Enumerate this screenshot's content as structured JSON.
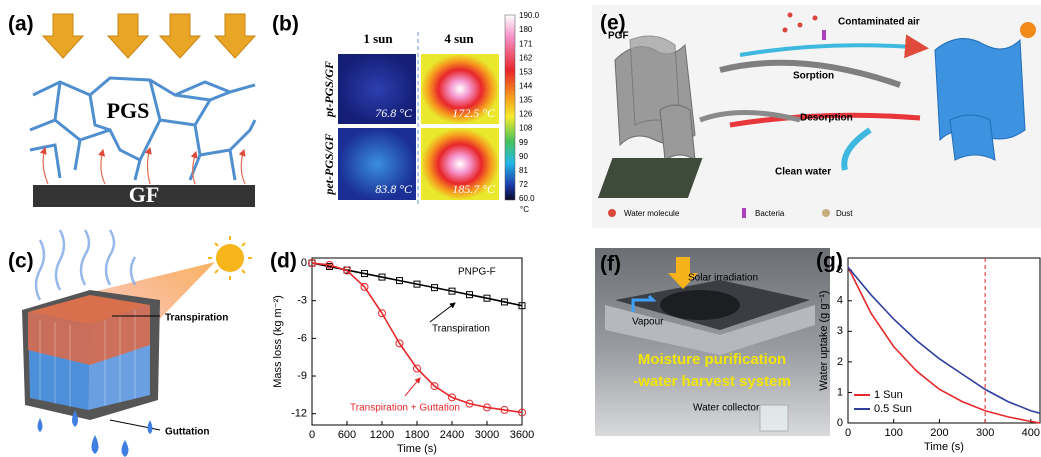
{
  "panel_labels": [
    "(a)",
    "(b)",
    "(c)",
    "(d)",
    "(e)",
    "(f)",
    "(g)"
  ],
  "panel_a": {
    "layer_top": "PGS",
    "layer_bottom": "GF"
  },
  "panel_b": {
    "columns": [
      "1 sun",
      "4 sun"
    ],
    "rows": [
      "pt-PGS/GF",
      "pet-PGS/GF"
    ],
    "temperatures": [
      [
        "76.8 °C",
        "172.5 °C"
      ],
      [
        "83.8 °C",
        "185.7 °C"
      ]
    ],
    "colorbar_ticks": [
      "190.0",
      "180",
      "171",
      "162",
      "153",
      "144",
      "135",
      "126",
      "108",
      "99",
      "90",
      "81",
      "72",
      "60.0"
    ],
    "colorbar_unit": "°C"
  },
  "panel_c": {
    "top_label": "Transpiration",
    "bottom_label": "Guttation"
  },
  "panel_e": {
    "material": "PGF",
    "inflow": "Contaminated air",
    "sorption": "Sorption",
    "desorption": "Desorption",
    "outflow": "Clean water",
    "legend": [
      "Water molecule",
      "Bacteria",
      "Dust"
    ]
  },
  "panel_f": {
    "light": "Solar irradiation",
    "vapour": "Vapour",
    "title_lines": [
      "Moisture purification",
      "-water harvest system"
    ],
    "collector": "Water collector"
  },
  "chart_data": [
    {
      "type": "line",
      "x_label": "Time (s)",
      "y_label": "Mass loss (kg m⁻²)",
      "annotation": "PNPG-F",
      "x": [
        0,
        300,
        600,
        900,
        1200,
        1500,
        1800,
        2100,
        2400,
        2700,
        3000,
        3300,
        3600
      ],
      "series": [
        {
          "name": "Transpiration",
          "color": "#000000",
          "marker": "square",
          "values": [
            0,
            -0.28,
            -0.56,
            -0.84,
            -1.12,
            -1.4,
            -1.68,
            -1.96,
            -2.24,
            -2.52,
            -2.8,
            -3.1,
            -3.4
          ]
        },
        {
          "name": "Transpiration + Guttation",
          "color": "#e8282b",
          "marker": "circle",
          "values": [
            0,
            -0.15,
            -0.6,
            -1.9,
            -4.0,
            -6.4,
            -8.4,
            -9.8,
            -10.7,
            -11.2,
            -11.5,
            -11.7,
            -11.9
          ]
        }
      ],
      "xlim": [
        0,
        3600
      ],
      "xticks": [
        0,
        600,
        1200,
        1800,
        2400,
        3000,
        3600
      ],
      "ylim": [
        -12.9,
        0.4
      ],
      "yticks": [
        0,
        -3,
        -6,
        -9,
        -12
      ]
    },
    {
      "type": "line",
      "x_label": "Time (s)",
      "y_label": "Water uptake (g g⁻¹)",
      "x": [
        0,
        50,
        100,
        150,
        200,
        250,
        300,
        350,
        400,
        420
      ],
      "series": [
        {
          "name": "1 Sun",
          "color": "#e8282b",
          "marker": "none",
          "values": [
            5.1,
            3.6,
            2.5,
            1.7,
            1.1,
            0.7,
            0.4,
            0.2,
            0.05,
            0.0
          ]
        },
        {
          "name": "0.5 Sun",
          "color": "#2e3f9e",
          "marker": "none",
          "values": [
            5.1,
            4.2,
            3.4,
            2.7,
            2.1,
            1.6,
            1.1,
            0.7,
            0.4,
            0.32
          ]
        }
      ],
      "vline": 300,
      "xlim": [
        0,
        420
      ],
      "xticks": [
        0,
        100,
        200,
        300,
        400
      ],
      "ylim": [
        0,
        5.4
      ],
      "yticks": [
        0,
        1,
        2,
        3,
        4,
        5
      ],
      "legend": "lower-left"
    }
  ]
}
